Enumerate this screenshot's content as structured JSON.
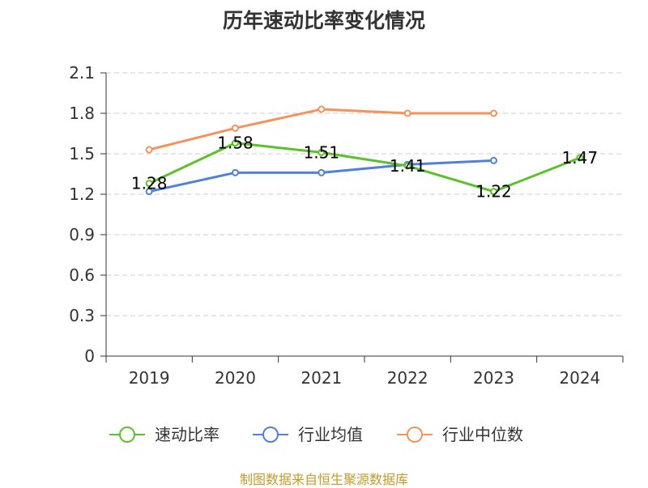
{
  "title": "历年速动比率变化情况",
  "footer": "制图数据来自恒生聚源数据库",
  "chart_data": {
    "type": "line",
    "title": "历年速动比率变化情况",
    "categories": [
      "2019",
      "2020",
      "2021",
      "2022",
      "2023",
      "2024"
    ],
    "y_ticks": [
      "0",
      "0.3",
      "0.6",
      "0.9",
      "1.2",
      "1.5",
      "1.8",
      "2.1"
    ],
    "ylim": [
      0,
      2.1
    ],
    "grid": true,
    "legend_position": "bottom",
    "series": [
      {
        "name": "速动比率",
        "color": "#5cc02c",
        "values": [
          1.28,
          1.58,
          1.51,
          1.41,
          1.22,
          1.47
        ],
        "labels": [
          "1.28",
          "1.58",
          "1.51",
          "1.41",
          "1.22",
          "1.47"
        ]
      },
      {
        "name": "行业均值",
        "color": "#4f81d8",
        "values": [
          1.22,
          1.36,
          1.36,
          1.42,
          1.45,
          null
        ]
      },
      {
        "name": "行业中位数",
        "color": "#f5925b",
        "values": [
          1.53,
          1.69,
          1.83,
          1.8,
          1.8,
          null
        ]
      }
    ]
  }
}
